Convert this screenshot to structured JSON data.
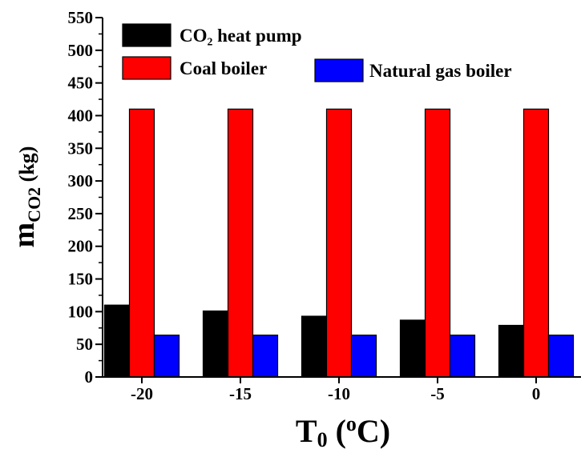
{
  "chart_data": {
    "type": "bar",
    "title": "",
    "xlabel_main": "T",
    "xlabel_sub": "0",
    "xlabel_open": " (",
    "xlabel_sup": "o",
    "xlabel_unit": "C)",
    "ylabel_main": "m",
    "ylabel_sub": "CO2",
    "ylabel_unit": " (kg)",
    "categories": [
      "-20",
      "-15",
      "-10",
      "-5",
      "0"
    ],
    "ylim": [
      0,
      550
    ],
    "yticks": [
      0,
      50,
      100,
      150,
      200,
      250,
      300,
      350,
      400,
      450,
      500,
      550
    ],
    "grid": false,
    "legend_position": "top",
    "series": [
      {
        "name": "CO₂ heat pump",
        "color": "#000000",
        "values": [
          110,
          101,
          93,
          87,
          79
        ]
      },
      {
        "name": "Coal boiler",
        "color": "#ff0000",
        "values": [
          410,
          410,
          410,
          410,
          410
        ]
      },
      {
        "name": "Natural gas boiler",
        "color": "#0000ff",
        "values": [
          64,
          64,
          64,
          64,
          64
        ]
      }
    ]
  }
}
